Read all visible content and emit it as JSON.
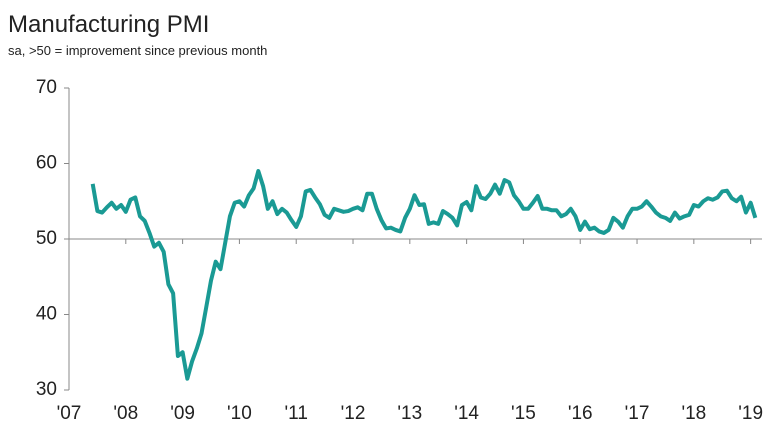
{
  "chart_data": {
    "type": "line",
    "title": "Manufacturing PMI",
    "subtitle": "sa, >50 = improvement since previous month",
    "x": [
      2007.417,
      2007.5,
      2007.583,
      2007.667,
      2007.75,
      2007.833,
      2007.917,
      2008,
      2008.083,
      2008.167,
      2008.25,
      2008.333,
      2008.417,
      2008.5,
      2008.583,
      2008.667,
      2008.75,
      2008.833,
      2008.917,
      2009,
      2009.083,
      2009.167,
      2009.25,
      2009.333,
      2009.417,
      2009.5,
      2009.583,
      2009.667,
      2009.75,
      2009.833,
      2009.917,
      2010,
      2010.083,
      2010.167,
      2010.25,
      2010.333,
      2010.417,
      2010.5,
      2010.583,
      2010.667,
      2010.75,
      2010.833,
      2010.917,
      2011,
      2011.083,
      2011.167,
      2011.25,
      2011.333,
      2011.417,
      2011.5,
      2011.583,
      2011.667,
      2011.75,
      2011.833,
      2011.917,
      2012,
      2012.083,
      2012.167,
      2012.25,
      2012.333,
      2012.417,
      2012.5,
      2012.583,
      2012.667,
      2012.75,
      2012.833,
      2012.917,
      2013,
      2013.083,
      2013.167,
      2013.25,
      2013.333,
      2013.417,
      2013.5,
      2013.583,
      2013.667,
      2013.75,
      2013.833,
      2013.917,
      2014,
      2014.083,
      2014.167,
      2014.25,
      2014.333,
      2014.417,
      2014.5,
      2014.583,
      2014.667,
      2014.75,
      2014.833,
      2014.917,
      2015,
      2015.083,
      2015.167,
      2015.25,
      2015.333,
      2015.417,
      2015.5,
      2015.583,
      2015.667,
      2015.75,
      2015.833,
      2015.917,
      2016,
      2016.083,
      2016.167,
      2016.25,
      2016.333,
      2016.417,
      2016.5,
      2016.583,
      2016.667,
      2016.75,
      2016.833,
      2016.917,
      2017,
      2017.083,
      2017.167,
      2017.25,
      2017.333,
      2017.417,
      2017.5,
      2017.583,
      2017.667,
      2017.75,
      2017.833,
      2017.917,
      2018,
      2018.083,
      2018.167,
      2018.25,
      2018.333,
      2018.417,
      2018.5,
      2018.583,
      2018.667,
      2018.75,
      2018.833,
      2018.917,
      2019,
      2019.083
    ],
    "series": [
      {
        "name": "Manufacturing PMI",
        "color": "#1a9a94",
        "values": [
          57.3,
          53.7,
          53.5,
          54.2,
          54.8,
          54.0,
          54.5,
          53.6,
          55.2,
          55.5,
          53.0,
          52.4,
          50.8,
          49.0,
          49.5,
          48.3,
          44.0,
          42.8,
          34.5,
          35.0,
          31.5,
          33.8,
          35.5,
          37.5,
          41.0,
          44.5,
          47.0,
          46.0,
          49.5,
          53.0,
          54.8,
          55.0,
          54.3,
          55.8,
          56.7,
          59.0,
          57.0,
          54.0,
          55.0,
          53.3,
          54.0,
          53.5,
          52.5,
          51.6,
          53.0,
          56.3,
          56.5,
          55.5,
          54.6,
          53.2,
          52.8,
          54.0,
          53.8,
          53.6,
          53.7,
          54.0,
          54.2,
          53.8,
          56.0,
          56.0,
          54.0,
          52.5,
          51.4,
          51.5,
          51.2,
          51.0,
          52.8,
          54.0,
          55.8,
          54.5,
          54.6,
          52.0,
          52.2,
          52.0,
          53.7,
          53.3,
          52.8,
          51.8,
          54.5,
          54.9,
          53.8,
          57.0,
          55.5,
          55.3,
          56.0,
          57.2,
          56.0,
          57.8,
          57.5,
          55.8,
          55.0,
          54.0,
          54.0,
          54.8,
          55.7,
          54.0,
          54.0,
          53.8,
          53.8,
          53.0,
          53.3,
          54.0,
          53.0,
          51.2,
          52.3,
          51.3,
          51.5,
          51.0,
          50.8,
          51.2,
          52.8,
          52.3,
          51.5,
          53.0,
          54.0,
          54.0,
          54.3,
          55.0,
          54.3,
          53.5,
          53.0,
          52.8,
          52.4,
          53.5,
          52.7,
          53.0,
          53.2,
          54.5,
          54.3,
          55.0,
          55.4,
          55.2,
          55.5,
          56.3,
          56.4,
          55.4,
          55.0,
          55.6,
          53.5,
          54.8,
          52.8
        ]
      }
    ],
    "xlim": [
      2007,
      2019.2
    ],
    "xticks": [
      {
        "value": 2007,
        "label": "'07"
      },
      {
        "value": 2008,
        "label": "'08"
      },
      {
        "value": 2009,
        "label": "'09"
      },
      {
        "value": 2010,
        "label": "'10"
      },
      {
        "value": 2011,
        "label": "'11"
      },
      {
        "value": 2012,
        "label": "'12"
      },
      {
        "value": 2013,
        "label": "'13"
      },
      {
        "value": 2014,
        "label": "'14"
      },
      {
        "value": 2015,
        "label": "'15"
      },
      {
        "value": 2016,
        "label": "'16"
      },
      {
        "value": 2017,
        "label": "'17"
      },
      {
        "value": 2018,
        "label": "'18"
      },
      {
        "value": 2019,
        "label": "'19"
      }
    ],
    "ylim": [
      30,
      70
    ],
    "yticks": [
      30,
      40,
      50,
      60,
      70
    ],
    "reference_line": 50
  }
}
